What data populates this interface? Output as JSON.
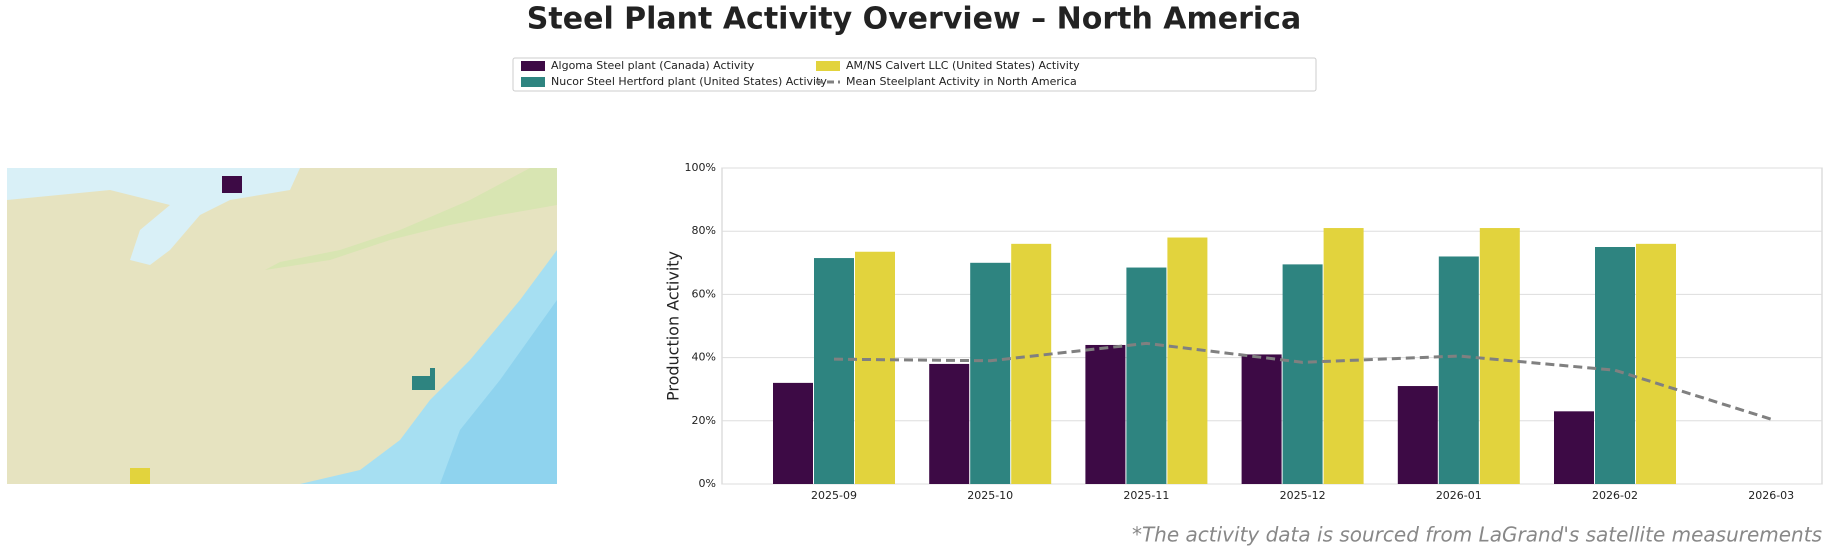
{
  "chart_data": {
    "type": "bar",
    "title": "Steel Plant Activity Overview – North America",
    "ylabel": "Production Activity",
    "footnote": "*The activity data is sourced from LaGrand's satellite measurements",
    "categories": [
      "2025-09",
      "2025-10",
      "2025-11",
      "2025-12",
      "2026-01",
      "2026-02",
      "2026-03"
    ],
    "series": [
      {
        "name": "Algoma Steel plant (Canada) Activity",
        "color": "#3d0a45",
        "values": [
          32,
          38,
          44,
          41,
          31,
          23,
          null
        ]
      },
      {
        "name": "Nucor Steel Hertford plant (United States) Activity",
        "color": "#2e8480",
        "values": [
          71.5,
          70,
          68.5,
          69.5,
          72,
          75,
          null
        ]
      },
      {
        "name": "AM/NS Calvert LLC (United States) Activity",
        "color": "#e2d33d",
        "values": [
          73.5,
          76,
          78,
          81,
          81,
          76,
          null
        ]
      },
      {
        "name": "Mean Steelplant Activity in North America",
        "color": "#808080",
        "type": "line",
        "dashed": true,
        "values": [
          39.5,
          39,
          44.5,
          38.5,
          40.5,
          36,
          20.5
        ]
      }
    ],
    "ylim": [
      0,
      100
    ],
    "yticks": [
      {
        "value": 0,
        "label": "0%"
      },
      {
        "value": 20,
        "label": "20%"
      },
      {
        "value": 40,
        "label": "40%"
      },
      {
        "value": 60,
        "label": "60%"
      },
      {
        "value": 80,
        "label": "80%"
      },
      {
        "value": 100,
        "label": "100%"
      }
    ],
    "grid": true
  }
}
